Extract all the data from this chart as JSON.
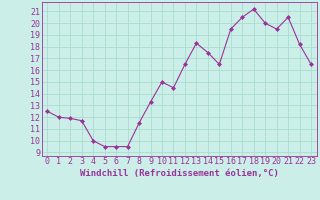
{
  "x": [
    0,
    1,
    2,
    3,
    4,
    5,
    6,
    7,
    8,
    9,
    10,
    11,
    12,
    13,
    14,
    15,
    16,
    17,
    18,
    19,
    20,
    21,
    22,
    23
  ],
  "y": [
    12.5,
    12.0,
    11.9,
    11.7,
    10.0,
    9.5,
    9.5,
    9.5,
    11.5,
    13.3,
    15.0,
    14.5,
    16.5,
    18.3,
    17.5,
    16.5,
    19.5,
    20.5,
    21.2,
    20.0,
    19.5,
    20.5,
    18.2,
    16.5
  ],
  "line_color": "#993399",
  "marker": "D",
  "marker_size": 2,
  "bg_color": "#cceee8",
  "grid_color": "#aaddcc",
  "xlabel": "Windchill (Refroidissement éolien,°C)",
  "ylabel_ticks": [
    9,
    10,
    11,
    12,
    13,
    14,
    15,
    16,
    17,
    18,
    19,
    20,
    21
  ],
  "ylim": [
    8.7,
    21.8
  ],
  "xlim": [
    -0.5,
    23.5
  ],
  "xtick_labels": [
    "0",
    "1",
    "2",
    "3",
    "4",
    "5",
    "6",
    "7",
    "8",
    "9",
    "10",
    "11",
    "12",
    "13",
    "14",
    "15",
    "16",
    "17",
    "18",
    "19",
    "20",
    "21",
    "22",
    "23"
  ],
  "xlabel_fontsize": 6.5,
  "tick_fontsize": 6.0
}
